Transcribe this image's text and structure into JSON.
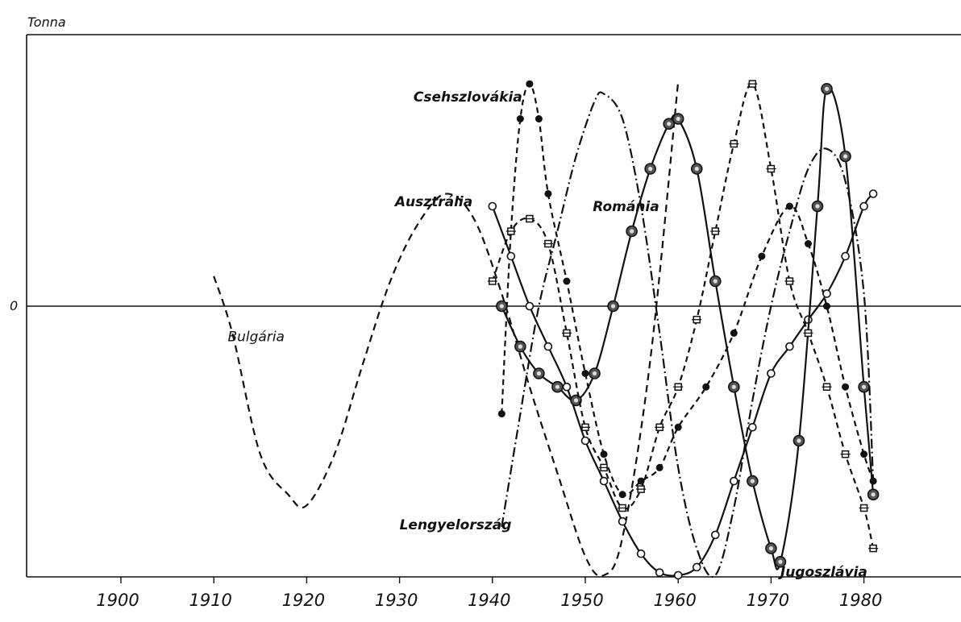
{
  "chart_data": {
    "type": "line",
    "ylabel": "Tonna",
    "zero_label": "0",
    "xlim": [
      1890,
      1982
    ],
    "ylim": [
      -1.0,
      1.0
    ],
    "x_ticks": [
      1900,
      1910,
      1920,
      1930,
      1940,
      1950,
      1960,
      1970,
      1980
    ],
    "x_tick_labels": [
      "1900",
      "1910",
      "1920",
      "1930",
      "1940",
      "1950",
      "1960",
      "1970",
      "1980"
    ],
    "grid": false,
    "series": [
      {
        "name": "Bulgária",
        "style": "dashed",
        "x": [
          1910,
          1912,
          1915,
          1918,
          1920,
          1923,
          1926,
          1929,
          1932,
          1935,
          1938,
          1941,
          1944,
          1947,
          1950,
          1952,
          1954,
          1957,
          1960
        ],
        "y": [
          0.12,
          -0.1,
          -0.55,
          -0.7,
          -0.74,
          -0.55,
          -0.22,
          0.1,
          0.33,
          0.45,
          0.35,
          0.05,
          -0.3,
          -0.62,
          -0.93,
          -1.0,
          -0.86,
          -0.2,
          0.9
        ]
      },
      {
        "name": "Lengyelország",
        "style": "dash-dot",
        "x": [
          1941,
          1943,
          1945,
          1947,
          1949,
          1951,
          1952,
          1954,
          1956,
          1958,
          1960,
          1962,
          1964,
          1966,
          1968,
          1970,
          1972,
          1974,
          1976,
          1978,
          1980,
          1981
        ],
        "y": [
          -0.82,
          -0.4,
          0.0,
          0.3,
          0.6,
          0.82,
          0.85,
          0.75,
          0.4,
          -0.1,
          -0.6,
          -0.9,
          -1.0,
          -0.75,
          -0.35,
          0.0,
          0.3,
          0.55,
          0.63,
          0.5,
          0.05,
          -0.65
        ]
      },
      {
        "name": "Csehszlovákia",
        "style": "filled-circle-dashed",
        "x": [
          1941,
          1942,
          1943,
          1944,
          1945,
          1946,
          1948,
          1950,
          1952,
          1954,
          1956,
          1958,
          1960,
          1963,
          1966,
          1969,
          1972,
          1974,
          1976,
          1978,
          1980,
          1981
        ],
        "y": [
          -0.4,
          0.3,
          0.75,
          0.89,
          0.75,
          0.45,
          0.1,
          -0.25,
          -0.55,
          -0.7,
          -0.65,
          -0.6,
          -0.45,
          -0.3,
          -0.1,
          0.2,
          0.4,
          0.25,
          0.0,
          -0.3,
          -0.55,
          -0.65
        ]
      },
      {
        "name": "Ausztrália",
        "style": "open-circle-solid",
        "x": [
          1940,
          1942,
          1944,
          1946,
          1948,
          1950,
          1952,
          1954,
          1956,
          1958,
          1960,
          1962,
          1964,
          1966,
          1968,
          1970,
          1972,
          1974,
          1976,
          1978,
          1980,
          1981
        ],
        "y": [
          0.4,
          0.2,
          0.0,
          -0.15,
          -0.3,
          -0.5,
          -0.65,
          -0.8,
          -0.92,
          -0.99,
          -1.0,
          -0.97,
          -0.85,
          -0.65,
          -0.45,
          -0.25,
          -0.15,
          -0.05,
          0.05,
          0.2,
          0.4,
          0.45
        ]
      },
      {
        "name": "Románia",
        "style": "ringed-circle-solid",
        "x": [
          1941,
          1943,
          1945,
          1947,
          1949,
          1951,
          1953,
          1955,
          1957,
          1959,
          1960,
          1962,
          1964,
          1966,
          1968,
          1970,
          1971,
          1973,
          1975,
          1976,
          1978,
          1980,
          1981
        ],
        "y": [
          0.0,
          -0.15,
          -0.25,
          -0.3,
          -0.35,
          -0.25,
          0.0,
          0.3,
          0.55,
          0.73,
          0.75,
          0.55,
          0.1,
          -0.3,
          -0.65,
          -0.9,
          -0.95,
          -0.5,
          0.4,
          0.87,
          0.6,
          -0.3,
          -0.7
        ]
      },
      {
        "name": "Jugoszlávia",
        "style": "cross-dashed",
        "x": [
          1940,
          1942,
          1944,
          1946,
          1948,
          1950,
          1952,
          1954,
          1956,
          1958,
          1960,
          1962,
          1964,
          1966,
          1968,
          1970,
          1972,
          1974,
          1976,
          1978,
          1980,
          1981
        ],
        "y": [
          0.1,
          0.3,
          0.35,
          0.25,
          -0.1,
          -0.45,
          -0.6,
          -0.75,
          -0.68,
          -0.45,
          -0.3,
          -0.05,
          0.3,
          0.65,
          0.89,
          0.55,
          0.1,
          -0.1,
          -0.3,
          -0.55,
          -0.75,
          -0.9
        ]
      }
    ],
    "labels": [
      {
        "text": "Csehszlovákia",
        "series": "Csehszlovákia",
        "weight": "bold"
      },
      {
        "text": "Ausztrália",
        "series": "Ausztrália",
        "weight": "bold"
      },
      {
        "text": "Románia",
        "series": "Románia",
        "weight": "bold"
      },
      {
        "text": "Bulgária",
        "series": "Bulgária",
        "weight": "normal"
      },
      {
        "text": "Lengyelország",
        "series": "Lengyelország",
        "weight": "bold"
      },
      {
        "text": "Jugoszlávia",
        "series": "Jugoszlávia",
        "weight": "bold"
      }
    ]
  }
}
